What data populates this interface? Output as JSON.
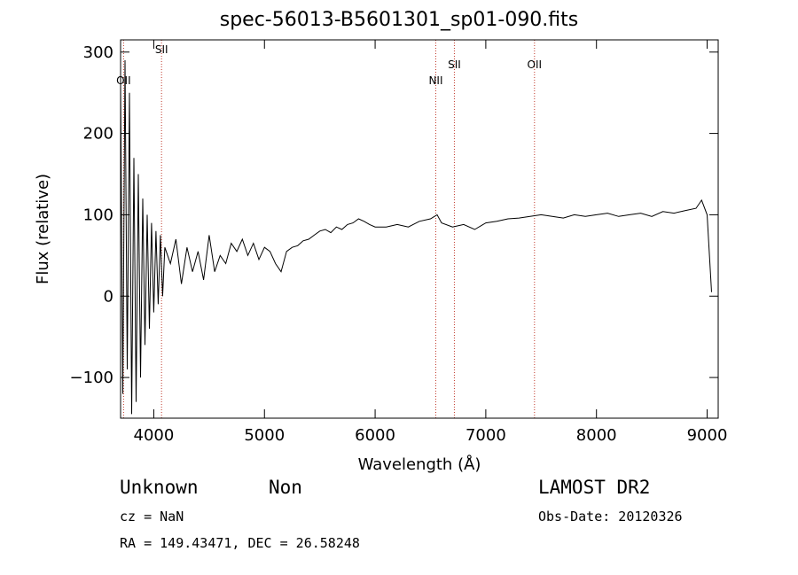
{
  "chart_data": {
    "type": "line",
    "title": "spec-56013-B5601301_sp01-090.fits",
    "xlabel": "Wavelength (Å)",
    "ylabel": "Flux (relative)",
    "xlim": [
      3700,
      9100
    ],
    "ylim": [
      -150,
      315
    ],
    "x_ticks": [
      4000,
      5000,
      6000,
      7000,
      8000,
      9000
    ],
    "y_ticks": [
      -100,
      0,
      100,
      200,
      300
    ],
    "grid": false,
    "series": [
      {
        "x": [
          3700,
          3720,
          3740,
          3760,
          3780,
          3800,
          3820,
          3840,
          3860,
          3880,
          3900,
          3920,
          3940,
          3960,
          3980,
          4000,
          4020,
          4040,
          4060,
          4080,
          4100,
          4150,
          4200,
          4250,
          4300,
          4350,
          4400,
          4450,
          4500,
          4550,
          4600,
          4650,
          4700,
          4750,
          4800,
          4850,
          4900,
          4950,
          5000,
          5050,
          5100,
          5150,
          5200,
          5250,
          5300,
          5350,
          5400,
          5450,
          5500,
          5550,
          5600,
          5650,
          5700,
          5750,
          5800,
          5850,
          5900,
          5950,
          6000,
          6100,
          6200,
          6300,
          6400,
          6500,
          6560,
          6600,
          6700,
          6800,
          6900,
          7000,
          7100,
          7200,
          7300,
          7400,
          7500,
          7600,
          7700,
          7800,
          7900,
          8000,
          8100,
          8200,
          8300,
          8400,
          8500,
          8600,
          8700,
          8800,
          8900,
          8950,
          9000,
          9040
        ],
        "y": [
          260,
          -120,
          290,
          -90,
          250,
          -145,
          170,
          -130,
          150,
          -100,
          120,
          -60,
          100,
          -40,
          90,
          -20,
          80,
          -10,
          75,
          0,
          60,
          40,
          70,
          15,
          60,
          30,
          55,
          20,
          75,
          30,
          50,
          40,
          65,
          55,
          70,
          50,
          65,
          45,
          60,
          55,
          40,
          30,
          55,
          60,
          62,
          68,
          70,
          75,
          80,
          82,
          78,
          85,
          82,
          88,
          90,
          95,
          92,
          88,
          85,
          85,
          88,
          85,
          92,
          95,
          100,
          90,
          85,
          88,
          82,
          90,
          92,
          95,
          96,
          98,
          100,
          98,
          96,
          100,
          98,
          100,
          102,
          98,
          100,
          102,
          98,
          104,
          102,
          105,
          108,
          118,
          100,
          5
        ]
      }
    ],
    "annotations": [
      {
        "label": "OII",
        "x": 3727
      },
      {
        "label": "SII",
        "x": 4070
      },
      {
        "label": "NII",
        "x": 6548
      },
      {
        "label": "SII",
        "x": 6716
      },
      {
        "label": "OII",
        "x": 7440
      }
    ]
  },
  "footer": {
    "class_label": "Unknown",
    "subclass_label": "Non",
    "survey": "LAMOST DR2",
    "cz": "cz = NaN",
    "obs_date": "Obs-Date: 20120326",
    "coords": "RA = 149.43471, DEC =  26.58248"
  },
  "colors": {
    "line": "#000000",
    "marker_line": "#c0392b",
    "background": "#ffffff"
  }
}
